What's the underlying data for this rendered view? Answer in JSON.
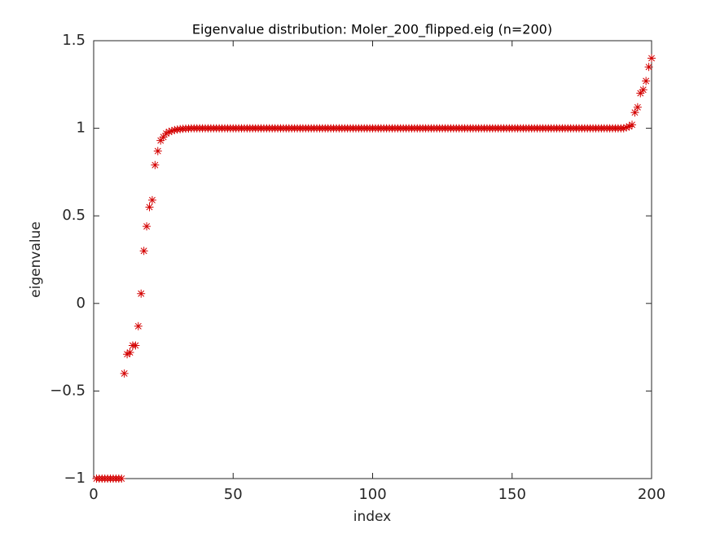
{
  "chart_data": {
    "type": "scatter",
    "title": "Eigenvalue distribution: Moler_200_flipped.eig (n=200)",
    "x_label": "index",
    "y_label": "eigenvalue",
    "x": [
      1,
      2,
      3,
      4,
      5,
      6,
      7,
      8,
      9,
      10,
      11,
      12,
      13,
      14,
      15,
      16,
      17,
      18,
      19,
      20,
      21,
      22,
      23,
      24,
      25,
      26,
      27,
      28,
      29,
      30,
      31,
      32,
      33,
      34,
      35,
      36,
      37,
      38,
      39,
      40,
      41,
      42,
      43,
      44,
      45,
      46,
      47,
      48,
      49,
      50,
      51,
      52,
      53,
      54,
      55,
      56,
      57,
      58,
      59,
      60,
      61,
      62,
      63,
      64,
      65,
      66,
      67,
      68,
      69,
      70,
      71,
      72,
      73,
      74,
      75,
      76,
      77,
      78,
      79,
      80,
      81,
      82,
      83,
      84,
      85,
      86,
      87,
      88,
      89,
      90,
      91,
      92,
      93,
      94,
      95,
      96,
      97,
      98,
      99,
      100,
      101,
      102,
      103,
      104,
      105,
      106,
      107,
      108,
      109,
      110,
      111,
      112,
      113,
      114,
      115,
      116,
      117,
      118,
      119,
      120,
      121,
      122,
      123,
      124,
      125,
      126,
      127,
      128,
      129,
      130,
      131,
      132,
      133,
      134,
      135,
      136,
      137,
      138,
      139,
      140,
      141,
      142,
      143,
      144,
      145,
      146,
      147,
      148,
      149,
      150,
      151,
      152,
      153,
      154,
      155,
      156,
      157,
      158,
      159,
      160,
      161,
      162,
      163,
      164,
      165,
      166,
      167,
      168,
      169,
      170,
      171,
      172,
      173,
      174,
      175,
      176,
      177,
      178,
      179,
      180,
      181,
      182,
      183,
      184,
      185,
      186,
      187,
      188,
      189,
      190,
      191,
      192,
      193,
      194,
      195,
      196,
      197,
      198,
      199,
      200
    ],
    "series": [
      {
        "color": "#d40000",
        "values": [
          -1,
          -1,
          -1,
          -1,
          -1,
          -1,
          -1,
          -1,
          -1,
          -1,
          -0.4,
          -0.29,
          -0.28,
          -0.24,
          -0.24,
          -0.13,
          0.056,
          0.3,
          0.44,
          0.55,
          0.59,
          0.79,
          0.87,
          0.93,
          0.95,
          0.97,
          0.98,
          0.985,
          0.99,
          0.993,
          0.995,
          0.997,
          0.998,
          0.999,
          1,
          1,
          1,
          1,
          1,
          1,
          1,
          1,
          1,
          1,
          1,
          1,
          1,
          1,
          1,
          1,
          1,
          1,
          1,
          1,
          1,
          1,
          1,
          1,
          1,
          1,
          1,
          1,
          1,
          1,
          1,
          1,
          1,
          1,
          1,
          1,
          1,
          1,
          1,
          1,
          1,
          1,
          1,
          1,
          1,
          1,
          1,
          1,
          1,
          1,
          1,
          1,
          1,
          1,
          1,
          1,
          1,
          1,
          1,
          1,
          1,
          1,
          1,
          1,
          1,
          1,
          1,
          1,
          1,
          1,
          1,
          1,
          1,
          1,
          1,
          1,
          1,
          1,
          1,
          1,
          1,
          1,
          1,
          1,
          1,
          1,
          1,
          1,
          1,
          1,
          1,
          1,
          1,
          1,
          1,
          1,
          1,
          1,
          1,
          1,
          1,
          1,
          1,
          1,
          1,
          1,
          1,
          1,
          1,
          1,
          1,
          1,
          1,
          1,
          1,
          1,
          1,
          1,
          1,
          1,
          1,
          1,
          1,
          1,
          1,
          1,
          1,
          1,
          1,
          1,
          1,
          1,
          1,
          1,
          1,
          1,
          1,
          1,
          1,
          1,
          1,
          1,
          1,
          1,
          1,
          1,
          1,
          1,
          1,
          1,
          1,
          1,
          1,
          1,
          1,
          1,
          1.005,
          1.01,
          1.02,
          1.09,
          1.12,
          1.2,
          1.22,
          1.27,
          1.35,
          1.4
        ]
      }
    ],
    "xlim": [
      0,
      200
    ],
    "xticks": [
      0,
      50,
      100,
      150,
      200
    ],
    "ylim": [
      -1,
      1.5
    ],
    "yticks": [
      {
        "value": -1,
        "label": "−1"
      },
      {
        "value": -0.5,
        "label": "−0.5"
      },
      0,
      0.5,
      1,
      1.5
    ],
    "grid": false
  }
}
